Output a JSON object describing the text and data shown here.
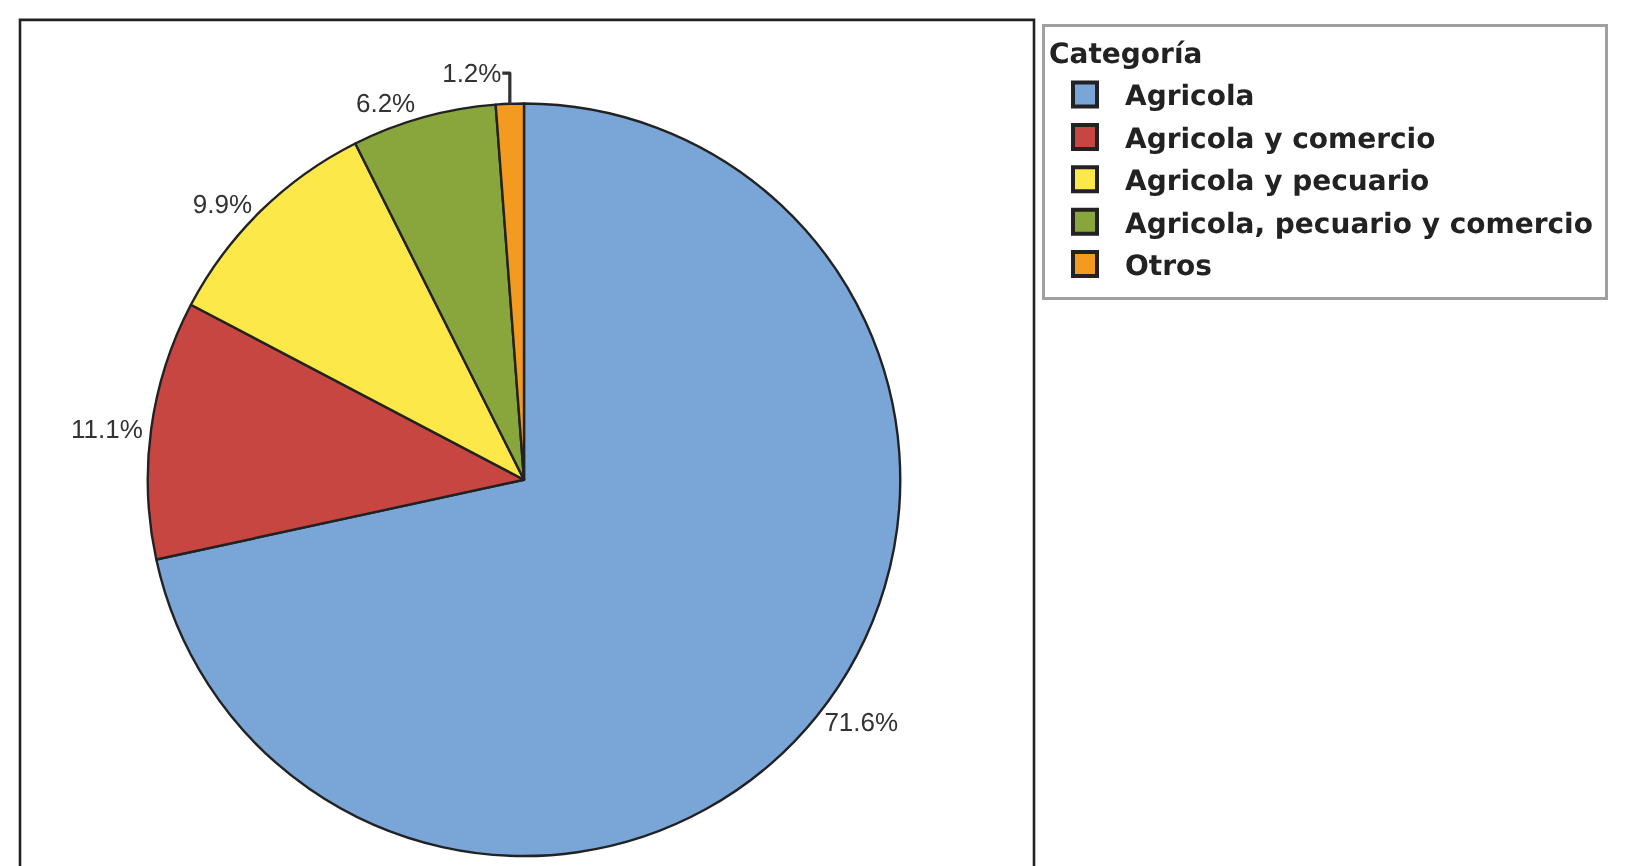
{
  "chart_data": {
    "type": "pie",
    "legend_title": "Categoría",
    "categories": [
      "Agricola",
      "Agricola y comercio",
      "Agricola y pecuario",
      "Agricola, pecuario y comercio",
      "Otros"
    ],
    "values": [
      71.6,
      11.1,
      9.9,
      6.2,
      1.2
    ],
    "value_labels": [
      "71.6%",
      "11.1%",
      "9.9%",
      "6.2%",
      "1.2%"
    ],
    "colors": [
      "#7aa5d7",
      "#c84642",
      "#fde84a",
      "#89a63d",
      "#f39a20"
    ],
    "legend": "top right"
  }
}
